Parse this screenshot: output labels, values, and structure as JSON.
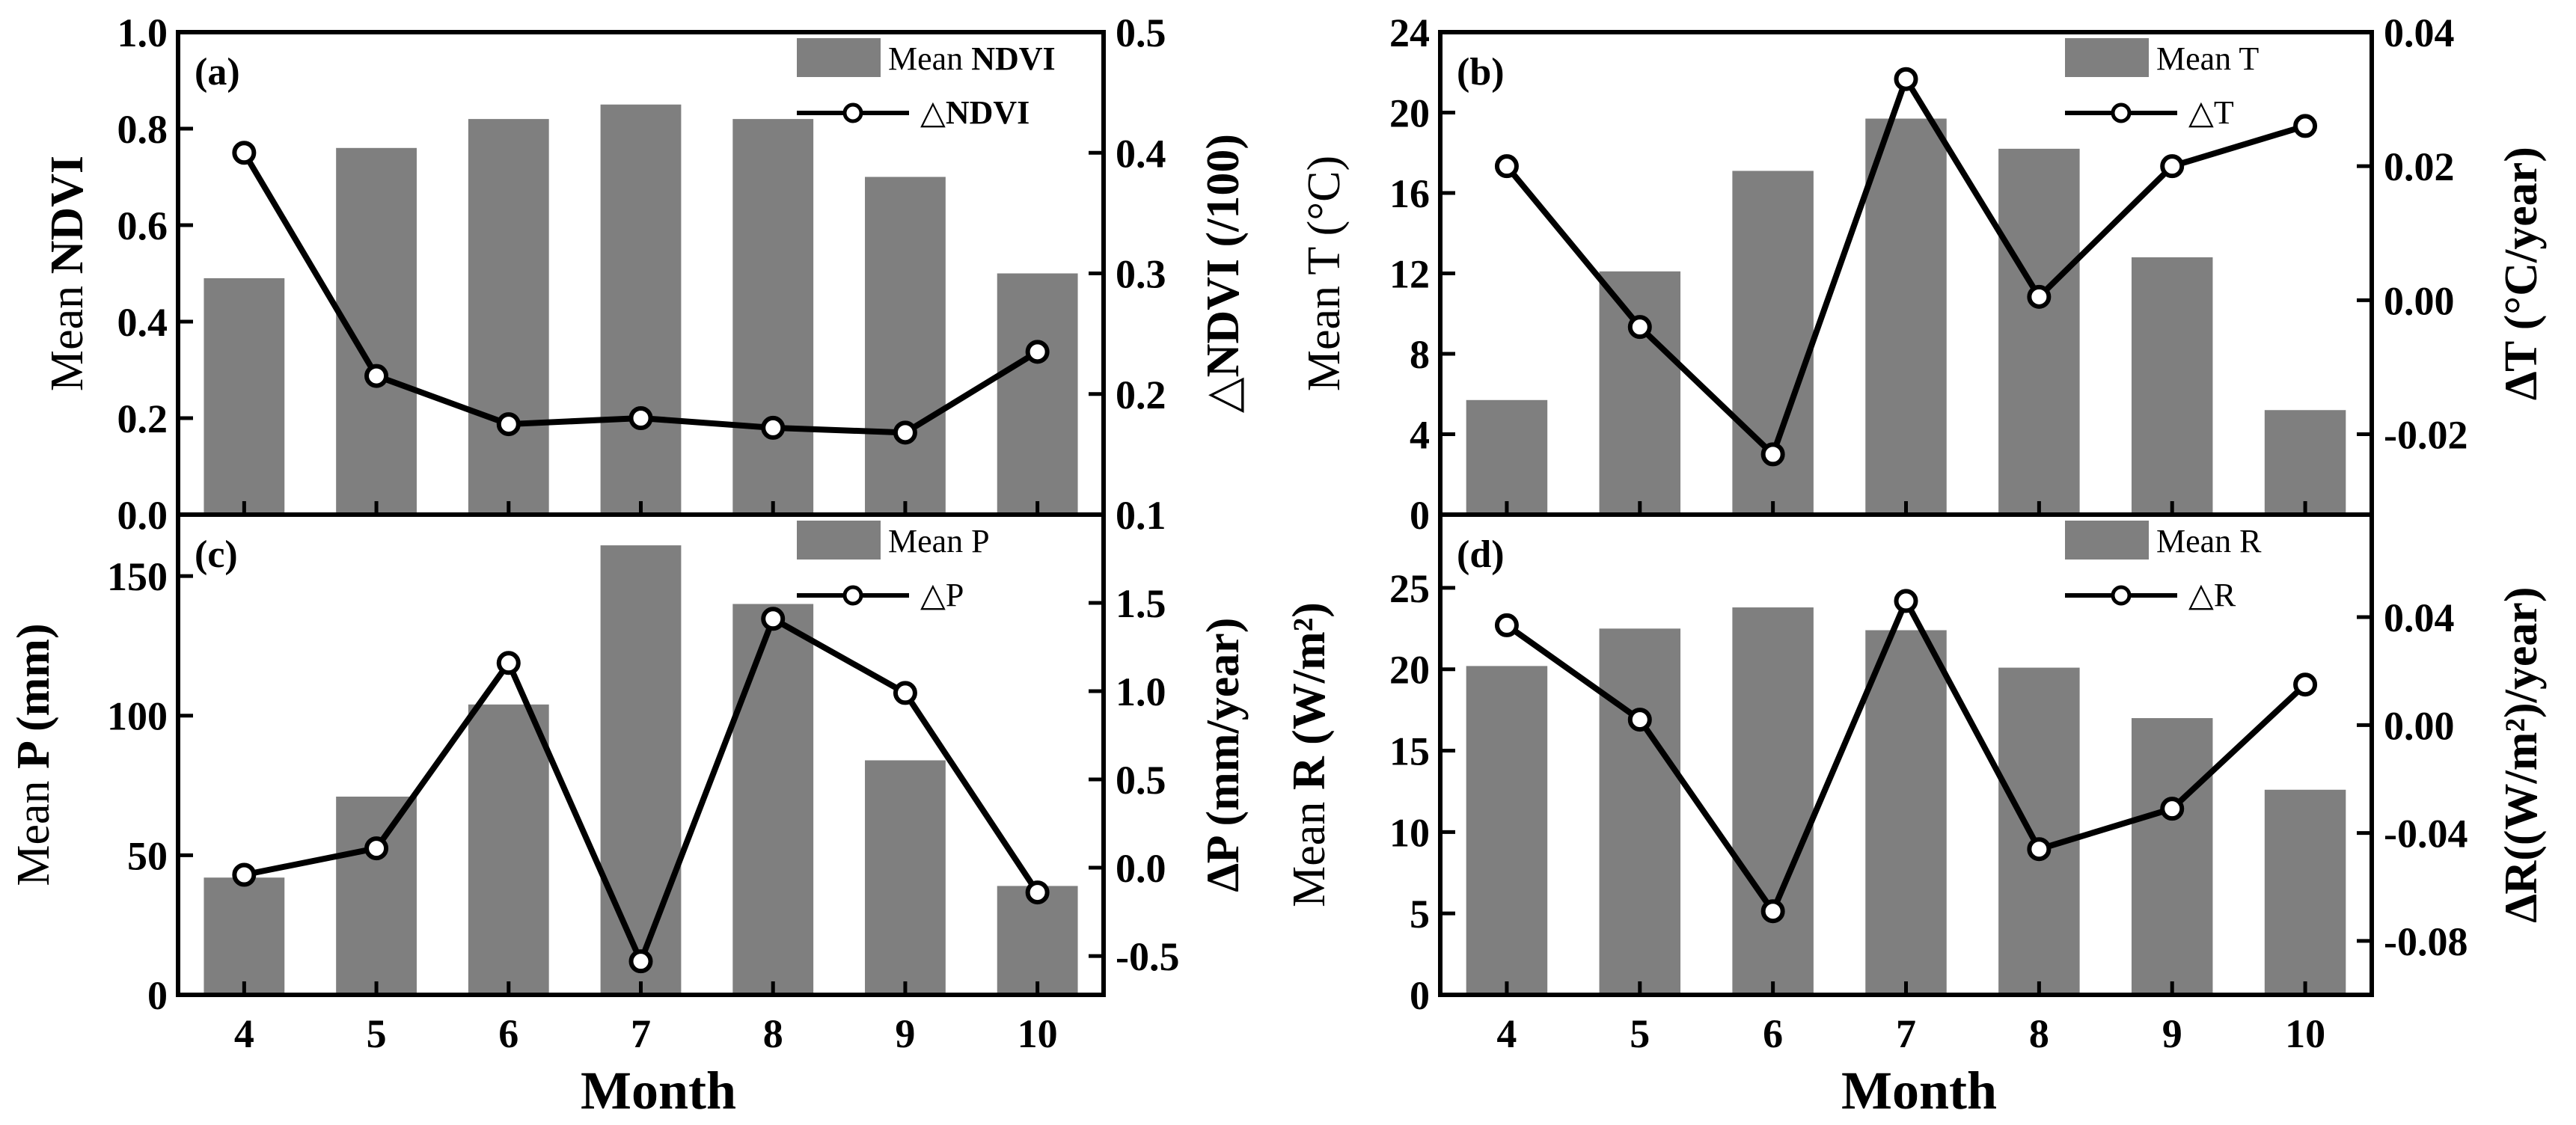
{
  "figure": {
    "xtitle": "Month"
  },
  "chart_data": [
    {
      "type": "bar",
      "panel_label": "(a)",
      "categories": [
        "4",
        "5",
        "6",
        "7",
        "8",
        "9",
        "10"
      ],
      "series": [
        {
          "name": "Mean NDVI",
          "kind": "bar",
          "axis": "left",
          "values": [
            0.49,
            0.76,
            0.82,
            0.85,
            0.82,
            0.7,
            0.5
          ]
        },
        {
          "name": "△NDVI",
          "kind": "line",
          "axis": "right",
          "values": [
            0.4,
            0.215,
            0.175,
            0.18,
            0.172,
            0.168,
            0.235
          ]
        }
      ],
      "ylabel": {
        "prefix": "Mean ",
        "bold": "NDVI"
      },
      "ylabel_right": "△NDVI (/100)",
      "ylim": [
        0,
        1.0
      ],
      "yticks": [
        "0.0",
        "0.2",
        "0.4",
        "0.6",
        "0.8",
        "1.0"
      ],
      "ylim_right": [
        0.1,
        0.5
      ],
      "yticks_right": [
        "0.1",
        "0.2",
        "0.3",
        "0.4",
        "0.5"
      ],
      "legend": {
        "bar_prefix": "Mean ",
        "bar_bold": "NDVI",
        "line": "△NDVI",
        "line_bold": true,
        "position": "top-right"
      }
    },
    {
      "type": "bar",
      "panel_label": "(b)",
      "categories": [
        "4",
        "5",
        "6",
        "7",
        "8",
        "9",
        "10"
      ],
      "series": [
        {
          "name": "Mean T",
          "kind": "bar",
          "axis": "left",
          "values": [
            5.7,
            12.1,
            17.1,
            19.7,
            18.2,
            12.8,
            5.2
          ]
        },
        {
          "name": "△T",
          "kind": "line",
          "axis": "right",
          "values": [
            0.02,
            -0.004,
            -0.023,
            0.033,
            0.0005,
            0.02,
            0.026
          ]
        }
      ],
      "ylabel": {
        "prefix": "Mean T (°C)",
        "bold": ""
      },
      "ylabel_right": "∆T (°C/year)",
      "ylim": [
        0,
        24
      ],
      "yticks": [
        "0",
        "4",
        "8",
        "12",
        "16",
        "20",
        "24"
      ],
      "ylim_right": [
        -0.032,
        0.04
      ],
      "yticks_right": [
        "-0.02",
        "0.00",
        "0.02",
        "0.04"
      ],
      "yticks_right_values": [
        -0.02,
        0.0,
        0.02,
        0.04
      ],
      "legend": {
        "bar_prefix": "Mean T",
        "bar_bold": "",
        "line": "△T",
        "line_bold": false,
        "position": "top-right"
      }
    },
    {
      "type": "bar",
      "panel_label": "(c)",
      "categories": [
        "4",
        "5",
        "6",
        "7",
        "8",
        "9",
        "10"
      ],
      "series": [
        {
          "name": "Mean P",
          "kind": "bar",
          "axis": "left",
          "values": [
            42,
            71,
            104,
            161,
            140,
            84,
            39
          ]
        },
        {
          "name": "△P",
          "kind": "line",
          "axis": "right",
          "values": [
            -0.04,
            0.11,
            1.16,
            -0.53,
            1.41,
            0.99,
            -0.14
          ]
        }
      ],
      "ylabel": {
        "prefix": "Mean ",
        "bold": "P (mm)"
      },
      "ylabel_right": "∆P (mm/year)",
      "ylim": [
        0,
        172
      ],
      "yticks": [
        "0",
        "50",
        "100",
        "150"
      ],
      "yticks_values": [
        0,
        50,
        100,
        150
      ],
      "ylim_right": [
        -0.72,
        2.0
      ],
      "yticks_right": [
        "-0.5",
        "0.0",
        "0.5",
        "1.0",
        "1.5"
      ],
      "yticks_right_values": [
        -0.5,
        0.0,
        0.5,
        1.0,
        1.5
      ],
      "legend": {
        "bar_prefix": "Mean P",
        "bar_bold": "",
        "line": "△P",
        "line_bold": false,
        "position": "top-right"
      }
    },
    {
      "type": "bar",
      "panel_label": "(d)",
      "categories": [
        "4",
        "5",
        "6",
        "7",
        "8",
        "9",
        "10"
      ],
      "series": [
        {
          "name": "Mean R",
          "kind": "bar",
          "axis": "left",
          "values": [
            20.2,
            22.5,
            23.8,
            22.4,
            20.1,
            17.0,
            12.6
          ]
        },
        {
          "name": "△R",
          "kind": "line",
          "axis": "right",
          "values": [
            0.037,
            0.002,
            -0.069,
            0.046,
            -0.046,
            -0.031,
            0.015
          ]
        }
      ],
      "ylabel": {
        "prefix": "Mean ",
        "bold": "R (W/m²)"
      },
      "ylabel_right": "∆R((W/m²)/year)",
      "ylim": [
        0,
        29.5
      ],
      "yticks": [
        "0",
        "5",
        "10",
        "15",
        "20",
        "25"
      ],
      "yticks_values": [
        0,
        5,
        10,
        15,
        20,
        25
      ],
      "ylim_right": [
        -0.1,
        0.078
      ],
      "yticks_right": [
        "-0.08",
        "-0.04",
        "0.00",
        "0.04"
      ],
      "yticks_right_values": [
        -0.08,
        -0.04,
        0.0,
        0.04
      ],
      "legend": {
        "bar_prefix": "Mean R",
        "bar_bold": "",
        "line": "△R",
        "line_bold": false,
        "position": "top-right"
      }
    }
  ],
  "colors": {
    "bar": "#7f7f7f",
    "line": "#000000",
    "marker_fill": "#ffffff",
    "axis": "#000000"
  }
}
